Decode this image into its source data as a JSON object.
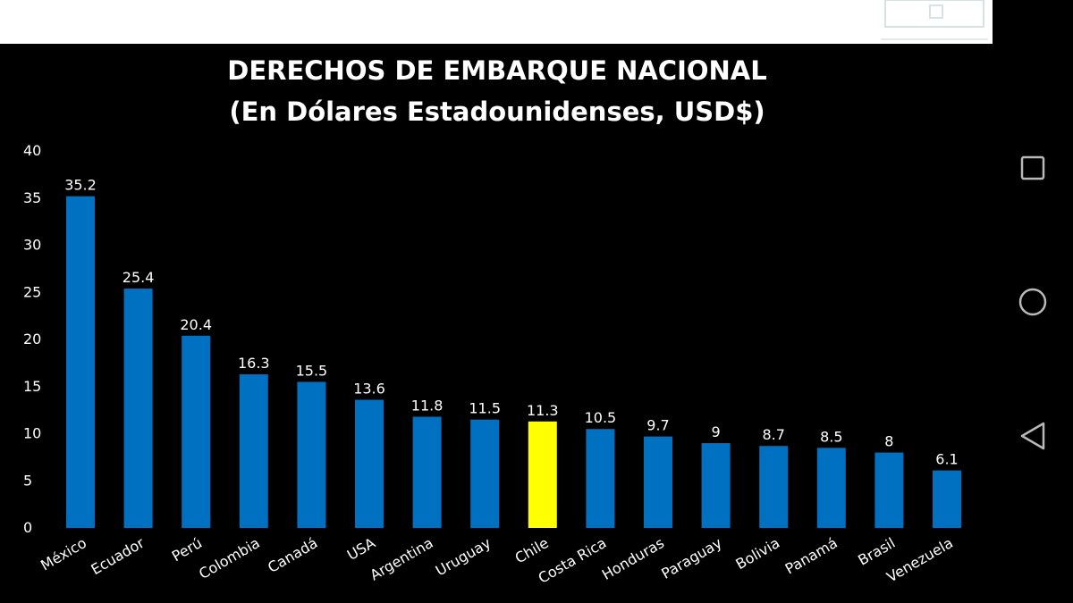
{
  "chart_data": {
    "type": "bar",
    "title": "DERECHOS DE EMBARQUE NACIONAL",
    "subtitle": "(En Dólares Estadounidenses, USD$)",
    "xlabel": "",
    "ylabel": "",
    "ylim": [
      0,
      40
    ],
    "yticks": [
      0,
      5,
      10,
      15,
      20,
      25,
      30,
      35,
      40
    ],
    "grid": false,
    "legend": "none",
    "categories": [
      "México",
      "Ecuador",
      "Perú",
      "Colombia",
      "Canadá",
      "USA",
      "Argentina",
      "Uruguay",
      "Chile",
      "Costa Rica",
      "Honduras",
      "Paraguay",
      "Bolivia",
      "Panamá",
      "Brasil",
      "Venezuela"
    ],
    "values": [
      35.2,
      25.4,
      20.4,
      16.3,
      15.5,
      13.6,
      11.8,
      11.5,
      11.3,
      10.5,
      9.7,
      9,
      8.7,
      8.5,
      8,
      6.1
    ],
    "value_labels": [
      "35.2",
      "25.4",
      "20.4",
      "16.3",
      "15.5",
      "13.6",
      "11.8",
      "11.5",
      "11.3",
      "10.5",
      "9.7",
      "9",
      "8.7",
      "8.5",
      "8",
      "6.1"
    ],
    "bar_color": "#0070c0",
    "highlight_category": "Chile",
    "highlight_color": "#ffff00",
    "background_color": "#000000",
    "text_color": "#ffffff"
  },
  "nav": {
    "recents_icon": "square-icon",
    "home_icon": "circle-icon",
    "back_icon": "triangle-back-icon"
  }
}
